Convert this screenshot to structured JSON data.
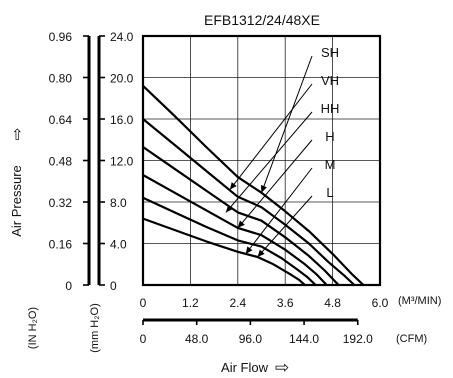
{
  "chart_data": {
    "type": "line",
    "title": "EFB1312/24/48XE",
    "ylabel": "Air Pressure",
    "ylabel_arrow": "⇨",
    "xlabel": "Air Flow",
    "xlabel_arrow": "⇨",
    "x_unit_top": "(M³/MIN)",
    "x_unit_bottom": "(CFM)",
    "y_unit_inner": "(mm H₂O)",
    "y_unit_outer": "(IN H₂O)",
    "xlim": [
      0,
      6.0
    ],
    "ylim": [
      0,
      24.0
    ],
    "grid": true,
    "x_ticks": [
      "0",
      "1.2",
      "2.4",
      "3.6",
      "4.8",
      "6.0"
    ],
    "x_ticks_cfm": [
      "0",
      "48.0",
      "96.0",
      "144.0",
      "192.0"
    ],
    "y_ticks_mm": [
      "0",
      "4.0",
      "8.0",
      "12.0",
      "16.0",
      "20.0",
      "24.0"
    ],
    "y_ticks_in": [
      "0",
      "0.16",
      "0.32",
      "0.48",
      "0.64",
      "0.80",
      "0.96"
    ],
    "series": [
      {
        "name": "SH",
        "x": [
          0,
          0.8,
          1.6,
          2.4,
          3.0,
          3.6,
          4.2,
          4.8,
          5.3,
          5.58
        ],
        "y": [
          19.2,
          16.3,
          13.3,
          10.4,
          8.9,
          7.1,
          5.2,
          3.0,
          1.0,
          0
        ]
      },
      {
        "name": "VH",
        "x": [
          0,
          0.8,
          1.6,
          2.4,
          3.0,
          3.6,
          4.2,
          4.7,
          5.1,
          5.35
        ],
        "y": [
          16.0,
          13.5,
          11.0,
          8.5,
          7.5,
          5.8,
          4.0,
          2.2,
          0.9,
          0
        ]
      },
      {
        "name": "HH",
        "x": [
          0,
          0.8,
          1.6,
          2.4,
          3.0,
          3.6,
          4.2,
          4.6,
          4.95
        ],
        "y": [
          13.3,
          11.2,
          9.1,
          7.0,
          6.2,
          4.6,
          2.8,
          1.4,
          0
        ]
      },
      {
        "name": "H",
        "x": [
          0,
          0.8,
          1.6,
          2.4,
          3.0,
          3.6,
          4.1,
          4.4,
          4.65
        ],
        "y": [
          10.6,
          8.9,
          7.2,
          5.5,
          4.8,
          3.4,
          2.0,
          1.0,
          0
        ]
      },
      {
        "name": "M",
        "x": [
          0,
          0.8,
          1.6,
          2.4,
          3.0,
          3.5,
          3.9,
          4.15,
          4.37
        ],
        "y": [
          8.4,
          7.0,
          5.6,
          4.3,
          3.7,
          2.6,
          1.5,
          0.8,
          0
        ]
      },
      {
        "name": "L",
        "x": [
          0,
          0.8,
          1.6,
          2.4,
          2.9,
          3.3,
          3.7,
          3.95,
          4.1
        ],
        "y": [
          6.4,
          5.3,
          4.2,
          3.2,
          2.7,
          2.0,
          1.1,
          0.5,
          0
        ]
      }
    ],
    "labels": [
      {
        "name": "SH",
        "at": [
          3.0,
          8.9
        ]
      },
      {
        "name": "VH",
        "at": [
          2.2,
          9.2
        ]
      },
      {
        "name": "HH",
        "at": [
          2.1,
          7.0
        ]
      },
      {
        "name": "H",
        "at": [
          2.4,
          5.5
        ]
      },
      {
        "name": "M",
        "at": [
          2.6,
          3.0
        ]
      },
      {
        "name": "L",
        "at": [
          2.9,
          2.7
        ]
      }
    ]
  }
}
